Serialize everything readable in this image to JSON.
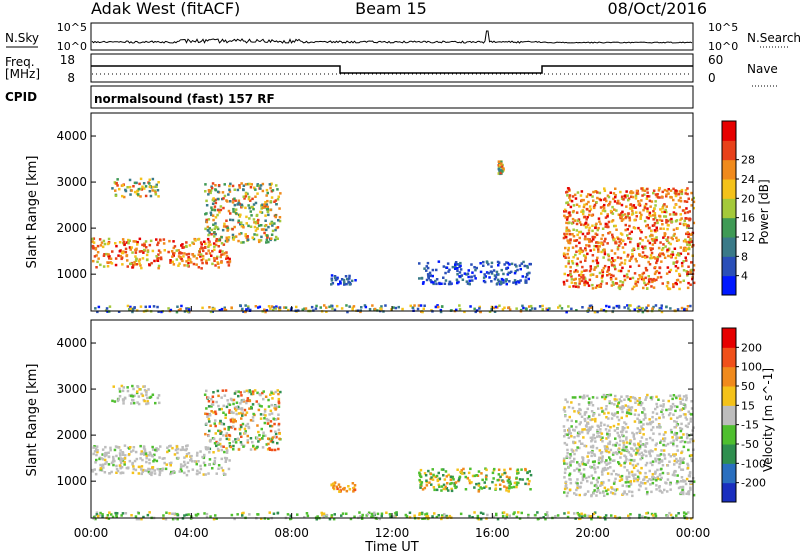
{
  "header": {
    "station": "Adak West (fitACF)",
    "beam": "Beam 15",
    "date": "08/Oct/2016"
  },
  "sky_panel": {
    "left_label": "N.Sky",
    "right_label": "N.Search",
    "left_ticks": [
      "10^5",
      "10^0"
    ],
    "right_ticks": [
      "10^5",
      "10^0"
    ]
  },
  "freq_panel": {
    "left_label_1": "Freq.",
    "left_label_2": "[MHz]",
    "right_label": "Nave",
    "left_ticks": [
      "18",
      "8"
    ],
    "right_ticks": [
      "60",
      "0"
    ],
    "cpid_label": "CPID",
    "cpid_text": "normalsound (fast) 157 RF"
  },
  "chart_data": [
    {
      "type": "heatmap",
      "title": "",
      "xlabel": "Time UT",
      "ylabel": "Slant Range [km]",
      "xlim_hours": [
        0,
        24
      ],
      "ylim_km": [
        200,
        4500
      ],
      "x_ticks": [
        "00:00",
        "04:00",
        "08:00",
        "12:00",
        "16:00",
        "20:00",
        "00:00"
      ],
      "y_ticks": [
        "1000",
        "2000",
        "3000",
        "4000"
      ],
      "colorbar": {
        "label": "Power [dB]",
        "ticks": [
          "4",
          "8",
          "12",
          "16",
          "20",
          "24",
          "28"
        ],
        "colors": [
          "#0018ff",
          "#2a4fb8",
          "#3a7a88",
          "#3f9a55",
          "#a4c93a",
          "#f4c21a",
          "#f08a1c",
          "#e8411a",
          "#e60000"
        ]
      },
      "features": [
        {
          "hours": [
            0.0,
            5.5
          ],
          "range_km": [
            1150,
            1800
          ],
          "level": "strong"
        },
        {
          "hours": [
            0.8,
            2.7
          ],
          "range_km": [
            2700,
            3100
          ],
          "level": "moderate"
        },
        {
          "hours": [
            4.5,
            7.5
          ],
          "range_km": [
            1700,
            3000
          ],
          "level": "moderate"
        },
        {
          "hours": [
            9.5,
            10.5
          ],
          "range_km": [
            800,
            1000
          ],
          "level": "weak"
        },
        {
          "hours": [
            13.0,
            17.5
          ],
          "range_km": [
            800,
            1300
          ],
          "level": "weak"
        },
        {
          "hours": [
            18.8,
            24.0
          ],
          "range_km": [
            700,
            2900
          ],
          "level": "strong"
        },
        {
          "hours": [
            16.2,
            16.4
          ],
          "range_km": [
            3200,
            3500
          ],
          "level": "moderate"
        },
        {
          "hours": [
            0.0,
            24.0
          ],
          "range_km": [
            200,
            350
          ],
          "level": "ground"
        }
      ]
    },
    {
      "type": "heatmap",
      "title": "",
      "xlabel": "Time UT",
      "ylabel": "Slant Range [km]",
      "xlim_hours": [
        0,
        24
      ],
      "ylim_km": [
        200,
        4500
      ],
      "x_ticks": [
        "00:00",
        "04:00",
        "08:00",
        "12:00",
        "16:00",
        "20:00",
        "00:00"
      ],
      "y_ticks": [
        "1000",
        "2000",
        "3000",
        "4000"
      ],
      "colorbar": {
        "label": "Velocity [m s^-1]",
        "ticks": [
          "200",
          "100",
          "50",
          "15",
          "-15",
          "-50",
          "-100",
          "-200"
        ],
        "colors": [
          "#1a2fbf",
          "#2a6fbf",
          "#2f8f4f",
          "#4fbf2f",
          "#bdbdbd",
          "#f4c21a",
          "#f08a1c",
          "#f0501a",
          "#e60000"
        ]
      },
      "features": [
        {
          "hours": [
            0.0,
            5.5
          ],
          "range_km": [
            1150,
            1800
          ],
          "level": "ground-scatter"
        },
        {
          "hours": [
            0.8,
            2.7
          ],
          "range_km": [
            2700,
            3100
          ],
          "level": "ground-scatter"
        },
        {
          "hours": [
            4.5,
            7.5
          ],
          "range_km": [
            1700,
            3000
          ],
          "level": "mixed-orange"
        },
        {
          "hours": [
            9.5,
            10.5
          ],
          "range_km": [
            800,
            1000
          ],
          "level": "orange"
        },
        {
          "hours": [
            13.0,
            17.5
          ],
          "range_km": [
            800,
            1300
          ],
          "level": "green-orange"
        },
        {
          "hours": [
            18.8,
            24.0
          ],
          "range_km": [
            700,
            2900
          ],
          "level": "ground-scatter"
        },
        {
          "hours": [
            0.0,
            24.0
          ],
          "range_km": [
            200,
            350
          ],
          "level": "green"
        }
      ]
    }
  ]
}
